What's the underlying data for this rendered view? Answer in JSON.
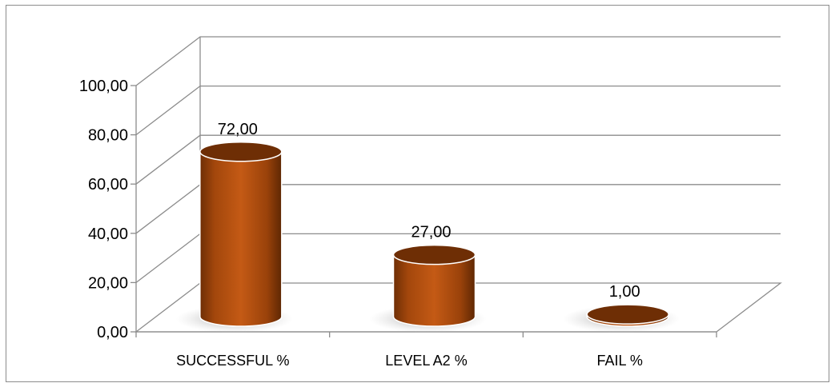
{
  "chart_data": {
    "type": "bar",
    "style": "3d-cylinder",
    "categories": [
      "SUCCESSFUL %",
      "LEVEL A2 %",
      "FAIL %"
    ],
    "values": [
      72,
      27,
      1
    ],
    "value_labels": [
      "72,00",
      "27,00",
      "1,00"
    ],
    "yticks": [
      "0,00",
      "20,00",
      "40,00",
      "60,00",
      "80,00",
      "100,00"
    ],
    "ylim": [
      0,
      100
    ],
    "title": "",
    "xlabel": "",
    "ylabel": "",
    "grid": true,
    "legend": "none",
    "colors": {
      "bar": "#b8500f",
      "bar_dark": "#6e2e05",
      "bar_light": "#cf6a1e",
      "grid": "#8c8c8c"
    }
  }
}
